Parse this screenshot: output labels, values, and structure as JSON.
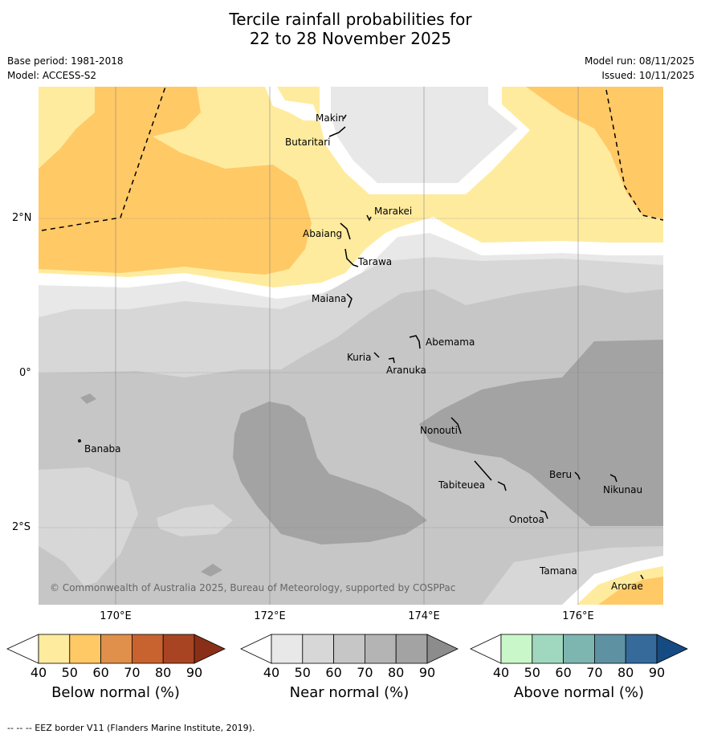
{
  "title_line1": "Tercile rainfall probabilities for",
  "title_line2": "22 to 28 November 2025",
  "base_period": "Base period: 1981-2018",
  "model": "Model: ACCESS-S2",
  "model_run": "Model run: 08/11/2025",
  "issued": "Issued: 10/11/2025",
  "lat_labels": [
    "2°N",
    "0°",
    "2°S"
  ],
  "lon_labels": [
    "170°E",
    "172°E",
    "174°E",
    "176°E"
  ],
  "islands": {
    "makin": "Makin",
    "butaritari": "Butaritari",
    "marakei": "Marakei",
    "abaiang": "Abaiang",
    "tarawa": "Tarawa",
    "maiana": "Maiana",
    "abemama": "Abemama",
    "kuria": "Kuria",
    "aranuka": "Aranuka",
    "banaba": "Banaba",
    "nonouti": "Nonouti",
    "beru": "Beru",
    "nikunau": "Nikunau",
    "tabiteuea": "Tabiteuea",
    "onotoa": "Onotoa",
    "tamana": "Tamana",
    "arorae": "Arorae"
  },
  "copyright": "© Commonwealth of Australia 2025, Bureau of Meteorology, supported by COSPPac",
  "colorbars": {
    "below": {
      "title": "Below normal (%)",
      "colors": [
        "#ffffff",
        "#ffeb9e",
        "#ffc966",
        "#e0904a",
        "#c8622f",
        "#a84422",
        "#8a2f17"
      ]
    },
    "near": {
      "title": "Near normal (%)",
      "colors": [
        "#ffffff",
        "#e8e8e8",
        "#d7d7d7",
        "#c6c6c6",
        "#b4b4b4",
        "#a3a3a3",
        "#8c8c8c"
      ]
    },
    "above": {
      "title": "Above normal (%)",
      "colors": [
        "#ffffff",
        "#caf7c9",
        "#a0d8bf",
        "#7db6b0",
        "#5e92a2",
        "#356a9a",
        "#164a82"
      ]
    },
    "ticks": [
      "40",
      "50",
      "60",
      "70",
      "80",
      "90"
    ]
  },
  "footer": "--  --  -- EEZ border V11 (Flanders Marine Institute, 2019)."
}
